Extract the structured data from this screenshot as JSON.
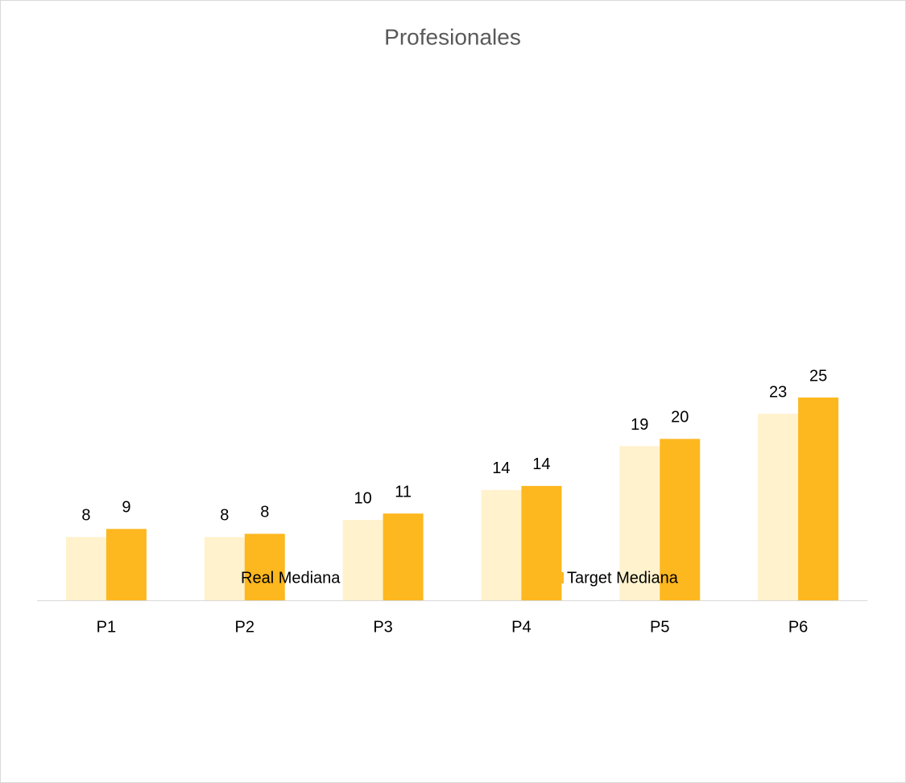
{
  "chart_data": {
    "type": "bar",
    "title": "Profesionales",
    "categories": [
      "P1",
      "P2",
      "P3",
      "P4",
      "P5",
      "P6"
    ],
    "series": [
      {
        "name": "Real Mediana",
        "color": "#fff2cc",
        "values": [
          7.8,
          7.8,
          9.9,
          13.6,
          19.0,
          23.0
        ],
        "value_labels": [
          "8",
          "8",
          "10",
          "14",
          "19",
          "23"
        ]
      },
      {
        "name": "Target Mediana",
        "color": "#fdb71f",
        "values": [
          8.8,
          8.2,
          10.7,
          14.1,
          19.9,
          25.0
        ],
        "value_labels": [
          "9",
          "8",
          "11",
          "14",
          "20",
          "25"
        ]
      }
    ],
    "legend": "bottom"
  }
}
